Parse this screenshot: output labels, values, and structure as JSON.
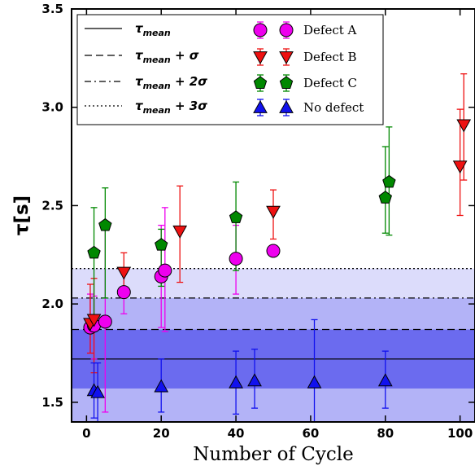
{
  "chart_data": {
    "type": "scatter",
    "title": "",
    "xlabel": "Number of Cycle",
    "ylabel": "τ[s]",
    "xlim": [
      -4,
      104
    ],
    "ylim": [
      1.4,
      3.5
    ],
    "xticks": [
      "0",
      "20",
      "40",
      "60",
      "80",
      "100"
    ],
    "xtick_values": [
      0,
      20,
      40,
      60,
      80,
      100
    ],
    "yticks": [
      "1.5",
      "2.0",
      "2.5",
      "3.0",
      "3.5"
    ],
    "ytick_values": [
      1.5,
      2.0,
      2.5,
      3.0,
      3.5
    ],
    "grid": false,
    "legend_position": "top",
    "reference_lines": [
      {
        "name": "τmean",
        "label_main": "τ",
        "label_sub": "mean",
        "label_suffix": "",
        "value": 1.72,
        "style": "solid"
      },
      {
        "name": "τmean + σ",
        "label_main": "τ",
        "label_sub": "mean",
        "label_suffix": " + σ",
        "value": 1.87,
        "style": "dashed"
      },
      {
        "name": "τmean + 2σ",
        "label_main": "τ",
        "label_sub": "mean",
        "label_suffix": " + 2σ",
        "value": 2.03,
        "style": "dashdot"
      },
      {
        "name": "τmean + 3σ",
        "label_main": "τ",
        "label_sub": "mean",
        "label_suffix": " + 3σ",
        "value": 2.18,
        "style": "dotted"
      }
    ],
    "bands": [
      {
        "from": 1.4,
        "to": 1.57,
        "color": "#b3b3f7"
      },
      {
        "from": 1.57,
        "to": 1.87,
        "color": "#6b6bef"
      },
      {
        "from": 1.87,
        "to": 2.03,
        "color": "#b3b3f7"
      },
      {
        "from": 2.03,
        "to": 2.18,
        "color": "#dcdcfb"
      }
    ],
    "series": [
      {
        "name": "Defect A",
        "marker": "circle",
        "color": "#ee00ee",
        "points": [
          {
            "x": 1,
            "y": 1.88,
            "lo": 1.75,
            "hi": 2.05
          },
          {
            "x": 2,
            "y": 1.89,
            "lo": 1.72,
            "hi": 2.04
          },
          {
            "x": 5,
            "y": 1.91,
            "lo": 1.45,
            "hi": 2.4
          },
          {
            "x": 10,
            "y": 2.06,
            "lo": 1.95,
            "hi": 2.18
          },
          {
            "x": 20,
            "y": 2.14,
            "lo": 1.88,
            "hi": 2.4
          },
          {
            "x": 21,
            "y": 2.17,
            "lo": 1.86,
            "hi": 2.49
          },
          {
            "x": 40,
            "y": 2.23,
            "lo": 2.05,
            "hi": 2.4
          },
          {
            "x": 50,
            "y": 2.27,
            "lo": 2.26,
            "hi": 2.28
          }
        ]
      },
      {
        "name": "Defect B",
        "marker": "triangle-down",
        "color": "#ee1111",
        "points": [
          {
            "x": 1,
            "y": 1.9,
            "lo": 1.75,
            "hi": 2.1
          },
          {
            "x": 2,
            "y": 1.92,
            "lo": 1.65,
            "hi": 2.13
          },
          {
            "x": 10,
            "y": 2.16,
            "lo": 2.03,
            "hi": 2.26
          },
          {
            "x": 25,
            "y": 2.37,
            "lo": 2.11,
            "hi": 2.6
          },
          {
            "x": 50,
            "y": 2.47,
            "lo": 2.33,
            "hi": 2.58
          },
          {
            "x": 100,
            "y": 2.7,
            "lo": 2.45,
            "hi": 2.99
          },
          {
            "x": 101,
            "y": 2.91,
            "lo": 2.63,
            "hi": 3.17
          }
        ]
      },
      {
        "name": "Defect C",
        "marker": "pentagon",
        "color": "#008800",
        "points": [
          {
            "x": 2,
            "y": 2.26,
            "lo": 1.88,
            "hi": 2.49
          },
          {
            "x": 5,
            "y": 2.4,
            "lo": 2.03,
            "hi": 2.59
          },
          {
            "x": 20,
            "y": 2.3,
            "lo": 2.09,
            "hi": 2.38
          },
          {
            "x": 40,
            "y": 2.44,
            "lo": 2.17,
            "hi": 2.62
          },
          {
            "x": 80,
            "y": 2.54,
            "lo": 2.36,
            "hi": 2.8
          },
          {
            "x": 81,
            "y": 2.62,
            "lo": 2.35,
            "hi": 2.9
          }
        ]
      },
      {
        "name": "No defect",
        "marker": "triangle-up",
        "color": "#1111ee",
        "points": [
          {
            "x": 2,
            "y": 1.56,
            "lo": 1.42,
            "hi": 1.7
          },
          {
            "x": 3,
            "y": 1.55,
            "lo": 1.4,
            "hi": 1.7
          },
          {
            "x": 20,
            "y": 1.58,
            "lo": 1.45,
            "hi": 1.72
          },
          {
            "x": 40,
            "y": 1.6,
            "lo": 1.44,
            "hi": 1.76
          },
          {
            "x": 45,
            "y": 1.61,
            "lo": 1.47,
            "hi": 1.77
          },
          {
            "x": 61,
            "y": 1.6,
            "lo": 1.4,
            "hi": 1.92
          },
          {
            "x": 80,
            "y": 1.61,
            "lo": 1.47,
            "hi": 1.76
          }
        ]
      }
    ]
  }
}
